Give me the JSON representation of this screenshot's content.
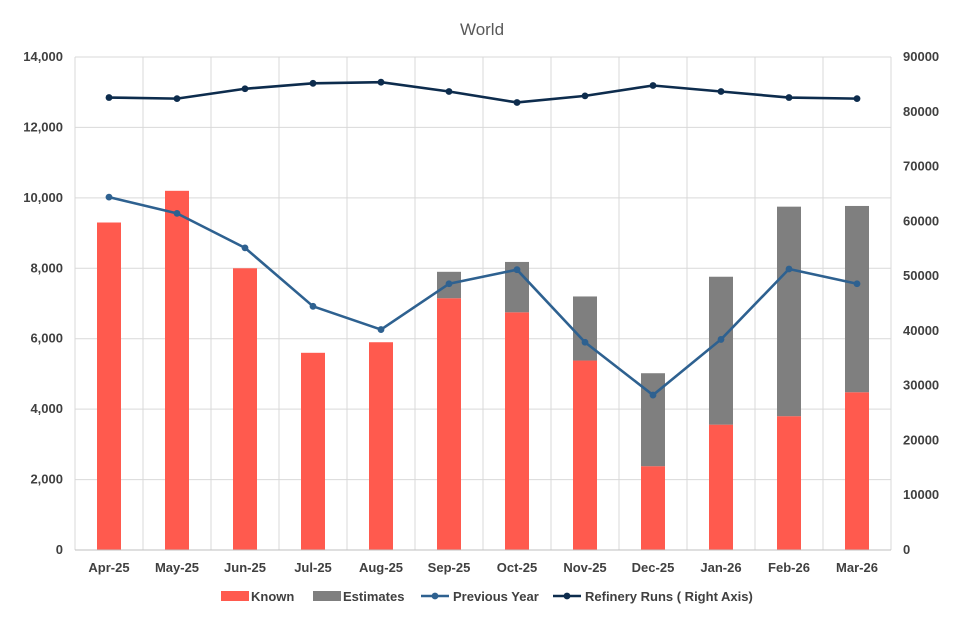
{
  "chart_data": {
    "type": "bar",
    "title": "World",
    "xlabel": "",
    "ylabel": "",
    "categories": [
      "Apr-25",
      "May-25",
      "Jun-25",
      "Jul-25",
      "Aug-25",
      "Sep-25",
      "Oct-25",
      "Nov-25",
      "Dec-25",
      "Jan-26",
      "Feb-26",
      "Mar-26"
    ],
    "ylim": [
      0,
      14000
    ],
    "yticks": [
      0,
      2000,
      4000,
      6000,
      8000,
      10000,
      12000,
      14000
    ],
    "ytick_labels": [
      "0",
      "2,000",
      "4,000",
      "6,000",
      "8,000",
      "10,000",
      "12,000",
      "14,000"
    ],
    "y2lim": [
      0,
      90000
    ],
    "y2ticks": [
      0,
      10000,
      20000,
      30000,
      40000,
      50000,
      60000,
      70000,
      80000,
      90000
    ],
    "y2tick_labels": [
      "0",
      "10000",
      "20000",
      "30000",
      "40000",
      "50000",
      "60000",
      "70000",
      "80000",
      "90000"
    ],
    "grid": true,
    "legend_position": "bottom",
    "series": [
      {
        "name": "Known",
        "kind": "stacked-bar",
        "axis": "left",
        "color": "#ff5a4e",
        "values": [
          9300,
          10200,
          8000,
          5600,
          5900,
          7150,
          6750,
          5380,
          2380,
          3560,
          3800,
          4480
        ]
      },
      {
        "name": "Estimates",
        "kind": "stacked-bar",
        "axis": "left",
        "color": "#7f7f7f",
        "values": [
          0,
          0,
          0,
          0,
          0,
          750,
          1430,
          1820,
          2640,
          4200,
          5950,
          5290
        ]
      },
      {
        "name": "Previous Year",
        "kind": "line",
        "axis": "left",
        "color": "#2e6190",
        "marker": "circle",
        "values": [
          10020,
          9560,
          8580,
          6920,
          6260,
          7560,
          7960,
          5900,
          4400,
          5980,
          7980,
          7560
        ]
      },
      {
        "name": "Refinery Runs ( Right Axis)",
        "kind": "line",
        "axis": "right",
        "color": "#0d2c4d",
        "marker": "circle",
        "values": [
          82600,
          82400,
          84200,
          85200,
          85400,
          83700,
          81700,
          82900,
          84800,
          83700,
          82600,
          82400
        ]
      }
    ]
  }
}
